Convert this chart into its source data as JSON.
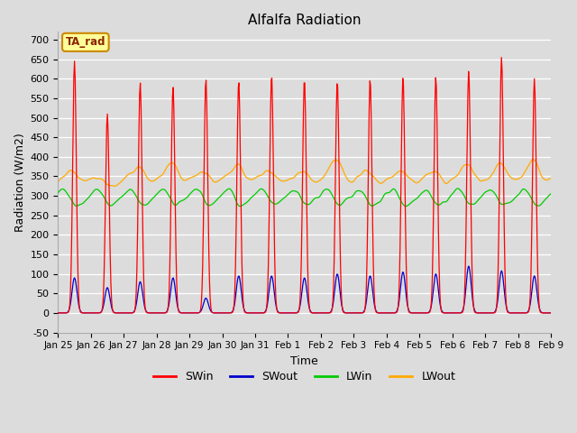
{
  "title": "Alfalfa Radiation",
  "xlabel": "Time",
  "ylabel": "Radiation (W/m2)",
  "ylim": [
    -50,
    720
  ],
  "yticks": [
    -50,
    0,
    50,
    100,
    150,
    200,
    250,
    300,
    350,
    400,
    450,
    500,
    550,
    600,
    650,
    700
  ],
  "background_color": "#dcdcdc",
  "annotation_text": "TA_rad",
  "annotation_bg": "#ffff99",
  "annotation_border": "#cc8800",
  "colors": {
    "SWin": "#ff0000",
    "SWout": "#0000cc",
    "LWin": "#00cc00",
    "LWout": "#ffaa00"
  },
  "tick_labels": [
    "Jan 25",
    "Jan 26",
    "Jan 27",
    "Jan 28",
    "Jan 29",
    "Jan 30",
    "Jan 31",
    "Feb 1",
    "Feb 2",
    "Feb 3",
    "Feb 4",
    "Feb 5",
    "Feb 6",
    "Feb 7",
    "Feb 8",
    "Feb 9"
  ],
  "sw_peaks": [
    645,
    510,
    590,
    580,
    600,
    595,
    610,
    600,
    595,
    600,
    605,
    605,
    620,
    655,
    600
  ],
  "swout_peaks": [
    90,
    65,
    80,
    90,
    38,
    95,
    95,
    90,
    100,
    95,
    105,
    100,
    120,
    108,
    95
  ],
  "lwin_base": 305,
  "lwout_base": 335,
  "lw_daytime_peaks": [
    390,
    315,
    405,
    415,
    385,
    420,
    385,
    385,
    435,
    385,
    385,
    385,
    420,
    425,
    430
  ]
}
